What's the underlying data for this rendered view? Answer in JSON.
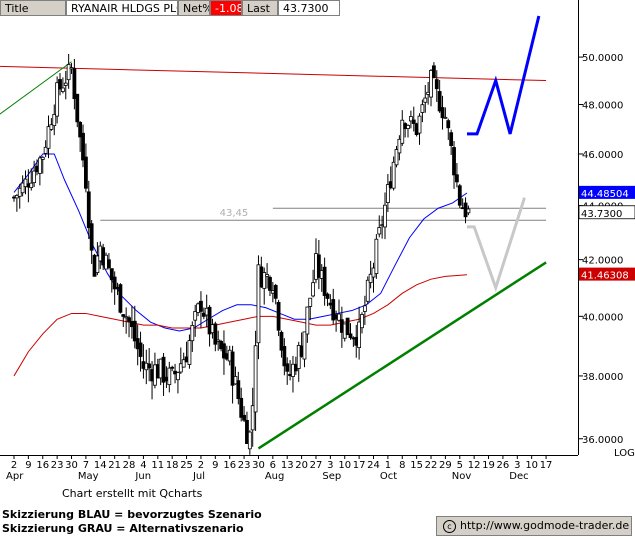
{
  "header": {
    "title_label": "Title",
    "instrument": "RYANAIR HLDGS PLC",
    "net_label": "Net%",
    "net_value": "-1.08",
    "last_label": "Last",
    "last_value": "43.7300"
  },
  "footer": {
    "credit": "Chart erstellt mit Qcharts",
    "scenario_blue": "Skizzierung BLAU = bevorzugtes Szenario",
    "scenario_gray": "Skizzierung GRAU = Alternativszenario",
    "source": "http://www.godmode-trader.de",
    "copyright_symbol": "c"
  },
  "chart_data": {
    "type": "candlestick",
    "scale": "log",
    "scale_label": "LOG",
    "ylim": [
      35.5,
      51.8
    ],
    "y_ticks": [
      36,
      38,
      40,
      42,
      44,
      46,
      48,
      50
    ],
    "y_tick_labels": [
      "36.0000",
      "38.0000",
      "40.0000",
      "42.0000",
      "44.0000",
      "46.0000",
      "48.0000",
      "50.0000"
    ],
    "x_day_ticks": [
      "2",
      "9",
      "16",
      "23",
      "30",
      "7",
      "14",
      "21",
      "28",
      "4",
      "11",
      "18",
      "25",
      "2",
      "9",
      "16",
      "23",
      "30",
      "6",
      "13",
      "20",
      "27",
      "3",
      "10",
      "17",
      "24",
      "1",
      "8",
      "15",
      "22",
      "29",
      "5",
      "12",
      "19",
      "26",
      "3",
      "10",
      "17"
    ],
    "x_month_labels": [
      {
        "label": "Apr",
        "tick": 0
      },
      {
        "label": "May",
        "tick": 5
      },
      {
        "label": "Jun",
        "tick": 9
      },
      {
        "label": "Jul",
        "tick": 13
      },
      {
        "label": "Aug",
        "tick": 18
      },
      {
        "label": "Sep",
        "tick": 22
      },
      {
        "label": "Oct",
        "tick": 26
      },
      {
        "label": "Nov",
        "tick": 31
      },
      {
        "label": "Dec",
        "tick": 35
      }
    ],
    "price_path": [
      [
        0,
        44.3
      ],
      [
        1,
        45.0
      ],
      [
        2,
        46.0
      ],
      [
        3,
        48.5
      ],
      [
        4,
        49.5
      ],
      [
        4.5,
        47.0
      ],
      [
        5,
        45.0
      ],
      [
        5.5,
        41.5
      ],
      [
        6,
        42.5
      ],
      [
        7,
        41.0
      ],
      [
        8,
        39.8
      ],
      [
        9,
        38.3
      ],
      [
        10,
        38.2
      ],
      [
        11,
        37.9
      ],
      [
        12,
        38.8
      ],
      [
        13,
        40.5
      ],
      [
        14,
        39.0
      ],
      [
        15,
        38.5
      ],
      [
        16,
        36.5
      ],
      [
        16.5,
        36.0
      ],
      [
        17,
        41.5
      ],
      [
        18,
        41.3
      ],
      [
        19,
        37.8
      ],
      [
        20,
        39.0
      ],
      [
        21,
        41.8
      ],
      [
        22,
        40.5
      ],
      [
        23,
        39.6
      ],
      [
        24,
        39.4
      ],
      [
        25,
        41.8
      ],
      [
        26,
        44.5
      ],
      [
        27,
        47.5
      ],
      [
        28,
        47.0
      ],
      [
        29,
        49.0
      ],
      [
        30,
        47.5
      ],
      [
        31,
        44.2
      ],
      [
        31.5,
        43.73
      ]
    ],
    "series": [
      {
        "name": "",
        "color": "#0000ff",
        "points": [
          [
            0,
            44.5
          ],
          [
            1,
            45.2
          ],
          [
            2,
            46.0
          ],
          [
            2.8,
            46.0
          ],
          [
            3.5,
            45.0
          ],
          [
            4.5,
            43.8
          ],
          [
            5.5,
            42.5
          ],
          [
            6.5,
            41.5
          ],
          [
            7.5,
            40.7
          ],
          [
            8.5,
            40.2
          ],
          [
            9.5,
            39.8
          ],
          [
            10.5,
            39.6
          ],
          [
            11.5,
            39.5
          ],
          [
            12.5,
            39.6
          ],
          [
            13.5,
            39.9
          ],
          [
            14.5,
            40.2
          ],
          [
            15.5,
            40.4
          ],
          [
            16.5,
            40.4
          ],
          [
            17.5,
            40.3
          ],
          [
            18.5,
            40.1
          ],
          [
            19.5,
            39.9
          ],
          [
            20.5,
            39.9
          ],
          [
            21.5,
            40.0
          ],
          [
            22.5,
            40.1
          ],
          [
            23.5,
            40.2
          ],
          [
            24.5,
            40.4
          ],
          [
            25.5,
            40.8
          ],
          [
            26.5,
            41.8
          ],
          [
            27.5,
            42.8
          ],
          [
            28.5,
            43.5
          ],
          [
            29.5,
            43.9
          ],
          [
            30.5,
            44.1
          ],
          [
            31.5,
            44.48
          ]
        ]
      },
      {
        "name": "",
        "color": "#cc0000",
        "points": [
          [
            0,
            38.0
          ],
          [
            1,
            38.8
          ],
          [
            2,
            39.4
          ],
          [
            3,
            39.9
          ],
          [
            4,
            40.1
          ],
          [
            5,
            40.1
          ],
          [
            6,
            40.0
          ],
          [
            7,
            39.9
          ],
          [
            8,
            39.8
          ],
          [
            9,
            39.7
          ],
          [
            10,
            39.7
          ],
          [
            11,
            39.6
          ],
          [
            12,
            39.6
          ],
          [
            13,
            39.6
          ],
          [
            14,
            39.7
          ],
          [
            15,
            39.8
          ],
          [
            16,
            39.9
          ],
          [
            17,
            40.0
          ],
          [
            18,
            40.0
          ],
          [
            19,
            39.9
          ],
          [
            20,
            39.8
          ],
          [
            21,
            39.7
          ],
          [
            22,
            39.7
          ],
          [
            23,
            39.8
          ],
          [
            24,
            39.9
          ],
          [
            25,
            40.1
          ],
          [
            26,
            40.4
          ],
          [
            27,
            40.8
          ],
          [
            28,
            41.1
          ],
          [
            29,
            41.3
          ],
          [
            30,
            41.4
          ],
          [
            31.5,
            41.46
          ]
        ]
      }
    ],
    "current_price": 43.73,
    "current_price_label": "43.7300",
    "ma_blue_value": 44.48504,
    "ma_blue_label": "44.48504",
    "ma_red_value": 41.46308,
    "ma_red_label": "41.46308",
    "annotations": [
      {
        "text": "43,45",
        "value": 43.45,
        "color": "#b0b0b0"
      }
    ],
    "scenario_blue": {
      "color": "#0000ff",
      "points": [
        [
          31.5,
          46.8
        ],
        [
          32.2,
          46.8
        ],
        [
          33.5,
          49.0
        ],
        [
          34.5,
          46.8
        ],
        [
          36.5,
          51.8
        ]
      ]
    },
    "scenario_gray": {
      "color": "#c8c8c8",
      "points": [
        [
          31.5,
          43.2
        ],
        [
          32,
          43.2
        ],
        [
          33.5,
          41.0
        ],
        [
          35.5,
          44.3
        ]
      ]
    },
    "trendlines": [
      {
        "name": "",
        "color": "#cc0000",
        "points": [
          [
            -1,
            49.6
          ],
          [
            37,
            49.0
          ]
        ]
      },
      {
        "name": "",
        "color": "#008000",
        "points": [
          [
            -1,
            47.6
          ],
          [
            4,
            49.8
          ]
        ]
      },
      {
        "name": "",
        "color": "#008000",
        "points": [
          [
            17,
            35.7
          ],
          [
            37,
            41.9
          ]
        ]
      },
      {
        "name": "",
        "color": "#808080",
        "points": [
          [
            6,
            43.45
          ],
          [
            37,
            43.45
          ]
        ]
      },
      {
        "name": "",
        "color": "#808080",
        "points": [
          [
            18,
            43.9
          ],
          [
            37,
            43.9
          ]
        ]
      }
    ]
  }
}
